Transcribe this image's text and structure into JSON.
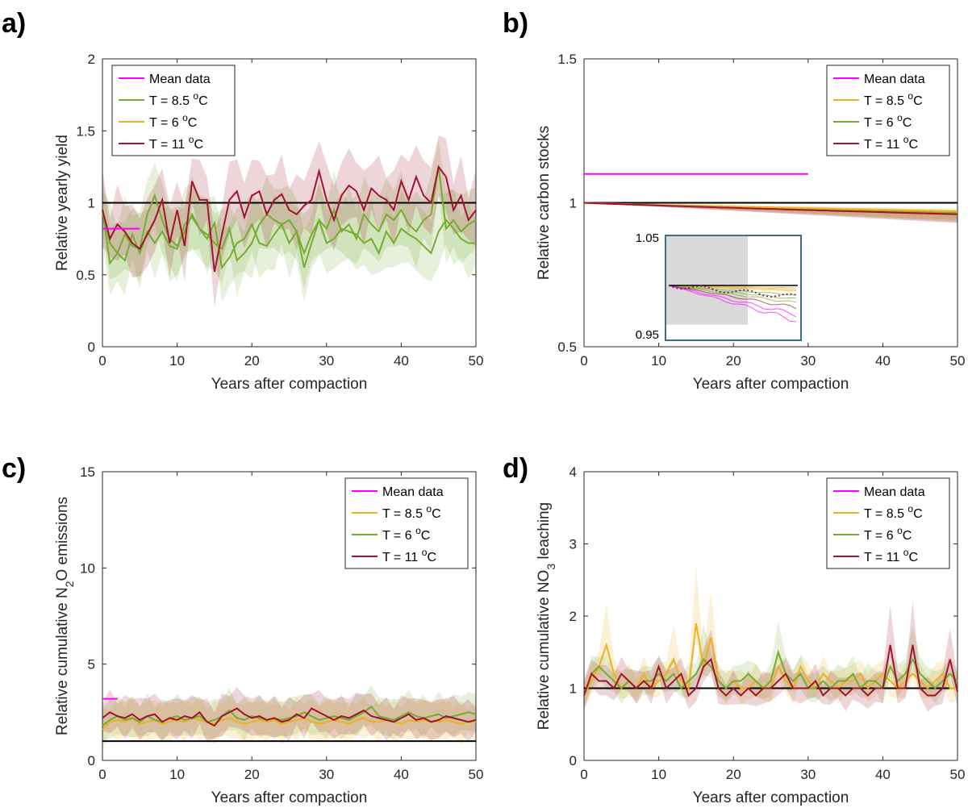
{
  "colors": {
    "mean": "#ff00ff",
    "t85_a": "#77ac30",
    "t6_a": "#edb120",
    "t85": "#edb120",
    "t6": "#77ac30",
    "t11": "#a2142f",
    "ref": "#000000",
    "inset_border": "#3b6e8f",
    "inset_shade": "#d9d9d9"
  },
  "chart_data": [
    {
      "panel": "a)",
      "type": "line",
      "xlabel": "Years after compaction",
      "ylabel": "Relative yearly yield",
      "xlim": [
        0,
        50
      ],
      "ylim": [
        0,
        2
      ],
      "xticks": [
        0,
        10,
        20,
        30,
        40,
        50
      ],
      "yticks": [
        0,
        0.5,
        1,
        1.5,
        2
      ],
      "reference": 1,
      "legend": [
        "Mean data",
        "T =  8.5 °C",
        "T =  6 °C",
        "T =  11 °C"
      ],
      "legend_position": "top-left",
      "mean": {
        "value": 0.82,
        "x": [
          0,
          5
        ]
      },
      "series": [
        {
          "key": "t6",
          "values": [
            0.95,
            0.72,
            0.65,
            0.78,
            0.7,
            0.68,
            0.92,
            1.05,
            0.88,
            0.75,
            0.7,
            0.8,
            0.92,
            0.82,
            0.75,
            0.86,
            0.55,
            0.62,
            0.72,
            0.75,
            0.85,
            0.72,
            0.7,
            0.78,
            0.85,
            0.72,
            0.8,
            0.65,
            0.78,
            0.88,
            0.72,
            0.75,
            0.82,
            0.8,
            0.78,
            0.72,
            0.75,
            0.65,
            0.8,
            0.72,
            0.82,
            0.78,
            0.75,
            0.7,
            0.65,
            0.8,
            0.88,
            0.82,
            0.75,
            0.72,
            0.72
          ]
        },
        {
          "key": "t85_a",
          "values": [
            0.95,
            0.58,
            0.65,
            0.6,
            0.78,
            0.65,
            0.8,
            0.72,
            0.8,
            0.7,
            0.68,
            0.85,
            0.9,
            0.82,
            0.78,
            0.72,
            0.68,
            0.82,
            0.6,
            0.65,
            0.72,
            0.85,
            0.92,
            0.88,
            0.85,
            0.88,
            0.8,
            0.55,
            0.72,
            0.88,
            0.82,
            0.95,
            0.8,
            0.85,
            0.75,
            0.92,
            0.85,
            0.8,
            0.92,
            0.88,
            0.95,
            0.85,
            0.8,
            0.88,
            0.92,
            1.25,
            0.82,
            0.88,
            0.8,
            0.85,
            0.88
          ]
        },
        {
          "key": "t11",
          "values": [
            0.95,
            0.75,
            0.85,
            0.8,
            0.72,
            0.68,
            0.78,
            0.88,
            1.02,
            0.72,
            0.95,
            0.7,
            1.15,
            1.02,
            1.02,
            0.52,
            0.78,
            1.02,
            1.08,
            0.9,
            1.05,
            1.08,
            0.92,
            1.02,
            1.06,
            0.95,
            0.92,
            0.98,
            1.02,
            1.22,
            1.02,
            0.88,
            1.05,
            1.12,
            1.08,
            0.95,
            1.1,
            1.05,
            1.02,
            0.95,
            1.15,
            1.02,
            1.18,
            1.05,
            1.0,
            1.25,
            1.18,
            0.95,
            1.05,
            0.88,
            0.95
          ]
        }
      ]
    },
    {
      "panel": "b)",
      "type": "line",
      "xlabel": "Years after compaction",
      "ylabel": "Relative carbon stocks",
      "xlim": [
        0,
        50
      ],
      "ylim": [
        0.5,
        1.5
      ],
      "xticks": [
        0,
        10,
        20,
        30,
        40,
        50
      ],
      "yticks": [
        0.5,
        1,
        1.5
      ],
      "reference": 1,
      "legend": [
        "Mean data",
        "T =  8.5 °C",
        "T =  6 °C",
        "T =  11 °C"
      ],
      "legend_position": "top-right",
      "mean": {
        "value": 1.1,
        "x": [
          0,
          30
        ]
      },
      "series": [
        {
          "key": "t6",
          "values_start": 1.0,
          "values_end": 0.965
        },
        {
          "key": "t85",
          "values_start": 1.0,
          "values_end": 0.97
        },
        {
          "key": "t11",
          "values_start": 1.0,
          "values_end": 0.96
        }
      ],
      "inset": {
        "ymax_label": "1.05",
        "ymin_label": "0.95"
      }
    },
    {
      "panel": "c)",
      "type": "line",
      "xlabel": "Years after compaction",
      "ylabel_parts": [
        "Relative cumulative N",
        "2",
        "O emissions"
      ],
      "xlim": [
        0,
        50
      ],
      "ylim": [
        0,
        15
      ],
      "xticks": [
        0,
        10,
        20,
        30,
        40,
        50
      ],
      "yticks": [
        0,
        5,
        10,
        15
      ],
      "reference": 1,
      "legend": [
        "Mean data",
        "T =  8.5 °C",
        "T =  6 °C",
        "T =  11 °C"
      ],
      "legend_position": "top-right",
      "mean": {
        "value": 3.2,
        "x": [
          0,
          2
        ]
      },
      "series": [
        {
          "key": "t85",
          "values": [
            1.6,
            2.0,
            2.1,
            2.0,
            2.2,
            1.9,
            2.0,
            2.1,
            1.9,
            2.0,
            2.1,
            2.0,
            2.2,
            2.1,
            2.0,
            1.9,
            2.1,
            2.2,
            2.0,
            1.9,
            2.0,
            2.1,
            2.0,
            2.1,
            1.9,
            2.0,
            2.1,
            2.2,
            2.0,
            1.9,
            2.0,
            2.1,
            2.0,
            1.9,
            2.1,
            2.2,
            2.0,
            2.0,
            2.1,
            2.0,
            1.9,
            2.1,
            2.0,
            2.1,
            2.0,
            2.0,
            2.1,
            2.0,
            1.9,
            2.0,
            2.0
          ]
        },
        {
          "key": "t6",
          "values": [
            1.8,
            2.1,
            2.3,
            2.1,
            2.2,
            2.0,
            2.3,
            2.1,
            2.0,
            2.2,
            2.3,
            2.1,
            2.2,
            2.3,
            2.0,
            2.1,
            2.3,
            2.6,
            2.2,
            2.1,
            2.3,
            2.2,
            2.1,
            2.2,
            2.1,
            2.2,
            2.3,
            2.5,
            2.3,
            2.1,
            2.2,
            2.3,
            2.2,
            2.1,
            2.3,
            2.5,
            2.8,
            2.3,
            2.2,
            2.1,
            2.3,
            2.5,
            2.3,
            2.2,
            2.3,
            2.4,
            2.2,
            2.3,
            2.4,
            2.5,
            2.4
          ]
        },
        {
          "key": "t11",
          "values": [
            2.2,
            2.5,
            2.3,
            2.2,
            2.4,
            2.1,
            2.3,
            2.4,
            2.0,
            2.2,
            2.1,
            2.3,
            2.2,
            2.5,
            2.0,
            1.8,
            2.3,
            2.5,
            2.7,
            2.4,
            2.2,
            2.3,
            2.1,
            2.2,
            2.0,
            2.1,
            2.4,
            2.2,
            2.7,
            2.5,
            2.3,
            2.1,
            2.3,
            2.2,
            2.4,
            2.6,
            2.3,
            2.2,
            2.1,
            2.0,
            2.2,
            2.4,
            2.1,
            2.2,
            2.0,
            2.1,
            2.3,
            2.2,
            2.1,
            2.0,
            2.1
          ]
        }
      ]
    },
    {
      "panel": "d)",
      "type": "line",
      "xlabel": "Years after compaction",
      "ylabel_parts": [
        "Relative cumulative NO",
        "3",
        " leaching"
      ],
      "xlim": [
        0,
        50
      ],
      "ylim": [
        0,
        4
      ],
      "xticks": [
        0,
        10,
        20,
        30,
        40,
        50
      ],
      "yticks": [
        0,
        1,
        2,
        3,
        4
      ],
      "reference": 1,
      "legend": [
        "Mean data",
        "T =  8.5 °C",
        "T =  6 °C",
        "T =  11 °C"
      ],
      "legend_position": "top-right",
      "mean": null,
      "series": [
        {
          "key": "t85",
          "values": [
            0.9,
            1.1,
            1.3,
            1.6,
            1.2,
            1.0,
            1.1,
            1.0,
            1.2,
            1.0,
            1.1,
            1.2,
            1.4,
            1.1,
            1.0,
            1.9,
            1.3,
            1.7,
            1.1,
            1.0,
            1.1,
            1.0,
            1.0,
            1.1,
            1.0,
            1.0,
            1.3,
            1.1,
            1.0,
            1.3,
            1.1,
            1.0,
            1.2,
            1.1,
            1.0,
            1.1,
            1.1,
            1.2,
            1.0,
            1.1,
            1.2,
            1.1,
            1.0,
            1.1,
            1.2,
            1.1,
            1.0,
            1.1,
            1.2,
            1.0,
            1.0
          ]
        },
        {
          "key": "t6",
          "values": [
            0.9,
            1.2,
            1.3,
            1.2,
            1.1,
            1.0,
            1.1,
            1.0,
            1.1,
            1.1,
            1.2,
            1.1,
            1.2,
            1.0,
            1.1,
            1.2,
            1.4,
            1.3,
            1.1,
            1.0,
            1.1,
            1.1,
            1.2,
            1.1,
            1.0,
            1.1,
            1.5,
            1.2,
            1.1,
            1.2,
            1.0,
            1.0,
            1.1,
            1.0,
            1.1,
            1.1,
            1.2,
            1.0,
            1.1,
            1.1,
            1.0,
            1.3,
            1.1,
            1.2,
            1.4,
            1.2,
            1.1,
            1.0,
            1.1,
            1.2,
            1.1
          ]
        },
        {
          "key": "t11",
          "values": [
            0.9,
            1.2,
            1.1,
            1.1,
            1.0,
            1.2,
            1.1,
            1.0,
            1.1,
            1.0,
            1.3,
            1.0,
            1.1,
            1.2,
            0.9,
            1.0,
            1.3,
            1.4,
            1.0,
            0.9,
            1.0,
            0.9,
            1.0,
            0.9,
            1.0,
            1.0,
            1.1,
            1.2,
            1.0,
            1.0,
            1.0,
            1.1,
            0.9,
            1.0,
            1.0,
            0.9,
            1.0,
            1.0,
            0.9,
            1.0,
            1.0,
            1.6,
            1.0,
            1.0,
            1.6,
            1.0,
            0.9,
            0.9,
            1.0,
            1.4,
            0.95
          ]
        }
      ]
    }
  ]
}
